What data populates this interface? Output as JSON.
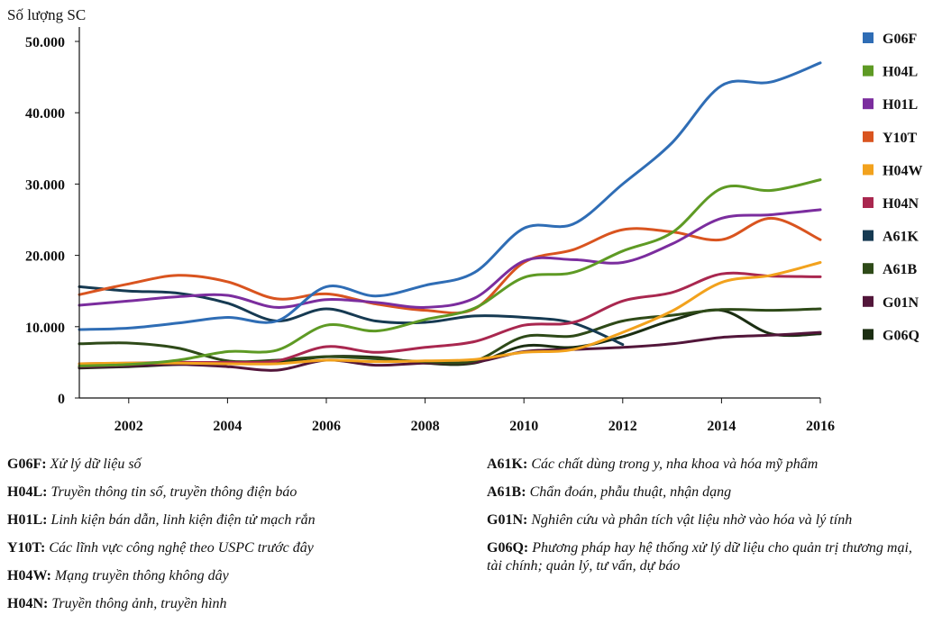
{
  "chart_data": {
    "type": "line",
    "ylabel": "Số lượng SC",
    "xlabel": "",
    "ylim": [
      0,
      52000
    ],
    "xlim": [
      2001,
      2016
    ],
    "x_ticks": [
      2002,
      2004,
      2006,
      2008,
      2010,
      2012,
      2014,
      2016
    ],
    "x_tick_labels": [
      "2002",
      "2004",
      "2006",
      "2008",
      "2010",
      "2012",
      "2014",
      "2016"
    ],
    "y_ticks": [
      0,
      10000,
      20000,
      30000,
      40000,
      50000
    ],
    "y_tick_labels": [
      "0",
      "10.000",
      "20.000",
      "30.000",
      "40.000",
      "50.000"
    ],
    "legend_position": "right",
    "series": [
      {
        "name": "G06F",
        "color": "#2f6db5",
        "x": [
          2001,
          2002,
          2003,
          2004,
          2005,
          2006,
          2007,
          2008,
          2009,
          2010,
          2011,
          2012,
          2013,
          2014,
          2015,
          2016
        ],
        "values": [
          9600,
          9800,
          10500,
          11300,
          10800,
          15600,
          14300,
          15800,
          17600,
          23800,
          24400,
          30000,
          35800,
          43800,
          44300,
          47000
        ]
      },
      {
        "name": "H04L",
        "color": "#5e9a24",
        "x": [
          2001,
          2002,
          2003,
          2004,
          2005,
          2006,
          2007,
          2008,
          2009,
          2010,
          2011,
          2012,
          2013,
          2014,
          2015,
          2016
        ],
        "values": [
          4500,
          4700,
          5300,
          6500,
          6700,
          10200,
          9400,
          11000,
          12600,
          16900,
          17600,
          20600,
          23200,
          29400,
          29100,
          30600
        ]
      },
      {
        "name": "H01L",
        "color": "#7b2d9e",
        "x": [
          2001,
          2002,
          2003,
          2004,
          2005,
          2006,
          2007,
          2008,
          2009,
          2010,
          2011,
          2012,
          2013,
          2014,
          2015,
          2016
        ],
        "values": [
          13000,
          13600,
          14200,
          14400,
          12700,
          13800,
          13400,
          12700,
          14000,
          19200,
          19400,
          19000,
          21600,
          25200,
          25700,
          26400
        ]
      },
      {
        "name": "Y10T",
        "color": "#d9541f",
        "x": [
          2001,
          2002,
          2003,
          2004,
          2005,
          2006,
          2007,
          2008,
          2009,
          2010,
          2011,
          2012,
          2013,
          2014,
          2015,
          2016
        ],
        "values": [
          14500,
          16000,
          17200,
          16300,
          13900,
          14600,
          13200,
          12300,
          12500,
          19000,
          20800,
          23600,
          23300,
          22200,
          25200,
          22200
        ]
      },
      {
        "name": "H04W",
        "color": "#f2a21d",
        "x": [
          2001,
          2002,
          2003,
          2004,
          2005,
          2006,
          2007,
          2008,
          2009,
          2010,
          2011,
          2012,
          2013,
          2014,
          2015,
          2016
        ],
        "values": [
          4800,
          4900,
          4900,
          4800,
          4800,
          5300,
          5100,
          5200,
          5400,
          6400,
          6800,
          9200,
          12200,
          16200,
          17200,
          19000
        ]
      },
      {
        "name": "H04N",
        "color": "#a9274f",
        "x": [
          2001,
          2002,
          2003,
          2004,
          2005,
          2006,
          2007,
          2008,
          2009,
          2010,
          2011,
          2012,
          2013,
          2014,
          2015,
          2016
        ],
        "values": [
          4800,
          4900,
          5000,
          5000,
          5200,
          7200,
          6400,
          7100,
          7900,
          10200,
          10600,
          13600,
          14800,
          17400,
          17100,
          17000
        ]
      },
      {
        "name": "A61K",
        "color": "#163a52",
        "x": [
          2001,
          2002,
          2003,
          2004,
          2005,
          2006,
          2007,
          2008,
          2009,
          2010,
          2011,
          2012
        ],
        "values": [
          15600,
          15000,
          14700,
          13300,
          10800,
          12500,
          10800,
          10600,
          11500,
          11300,
          10500,
          7500
        ]
      },
      {
        "name": "A61B",
        "color": "#2e4a18",
        "x": [
          2001,
          2002,
          2003,
          2004,
          2005,
          2006,
          2007,
          2008,
          2009,
          2010,
          2011,
          2012,
          2013,
          2014,
          2015,
          2016
        ],
        "values": [
          7600,
          7700,
          7000,
          5200,
          5300,
          5800,
          5500,
          5100,
          5200,
          8600,
          8700,
          10800,
          11600,
          12400,
          12300,
          12500
        ]
      },
      {
        "name": "G01N",
        "color": "#52163a",
        "x": [
          2001,
          2002,
          2003,
          2004,
          2005,
          2006,
          2007,
          2008,
          2009,
          2010,
          2011,
          2012,
          2013,
          2014,
          2015,
          2016
        ],
        "values": [
          4300,
          4500,
          4700,
          4400,
          3900,
          5300,
          4600,
          4900,
          5000,
          6500,
          6800,
          7100,
          7600,
          8500,
          8800,
          9200
        ]
      },
      {
        "name": "G06Q",
        "color": "#1b2e12",
        "x": [
          2001,
          2002,
          2003,
          2004,
          2005,
          2006,
          2007,
          2008,
          2009,
          2010,
          2011,
          2012,
          2013,
          2014,
          2015,
          2016
        ],
        "values": [
          4200,
          4400,
          4700,
          4900,
          5000,
          5800,
          5700,
          4900,
          4900,
          7300,
          7100,
          8600,
          10900,
          12300,
          9000,
          9000
        ]
      }
    ]
  },
  "glossary": {
    "left": [
      {
        "code": "G06F:",
        "desc": "Xử lý dữ liệu số"
      },
      {
        "code": "H04L:",
        "desc": "Truyền thông tin số, truyền thông điện báo"
      },
      {
        "code": "H01L:",
        "desc": "Linh kiện bán dẫn, linh kiện điện tử mạch rắn"
      },
      {
        "code": "Y10T:",
        "desc": "Các lĩnh vực công nghệ theo USPC trước đây"
      },
      {
        "code": "H04W:",
        "desc": "Mạng truyền thông không dây"
      },
      {
        "code": "H04N:",
        "desc": "Truyền thông ảnh, truyền hình"
      }
    ],
    "right": [
      {
        "code": "A61K:",
        "desc": "Các chất dùng trong y, nha khoa và hóa mỹ phẩm"
      },
      {
        "code": "A61B:",
        "desc": "Chẩn đoán, phẫu thuật, nhận dạng"
      },
      {
        "code": "G01N:",
        "desc": "Nghiên cứu và phân tích vật liệu nhờ vào hóa và lý tính"
      },
      {
        "code": "G06Q:",
        "desc": "Phương pháp hay hệ thống xử lý dữ liệu cho quản trị thương mại, tài chính; quản lý, tư vấn, dự báo"
      }
    ]
  }
}
